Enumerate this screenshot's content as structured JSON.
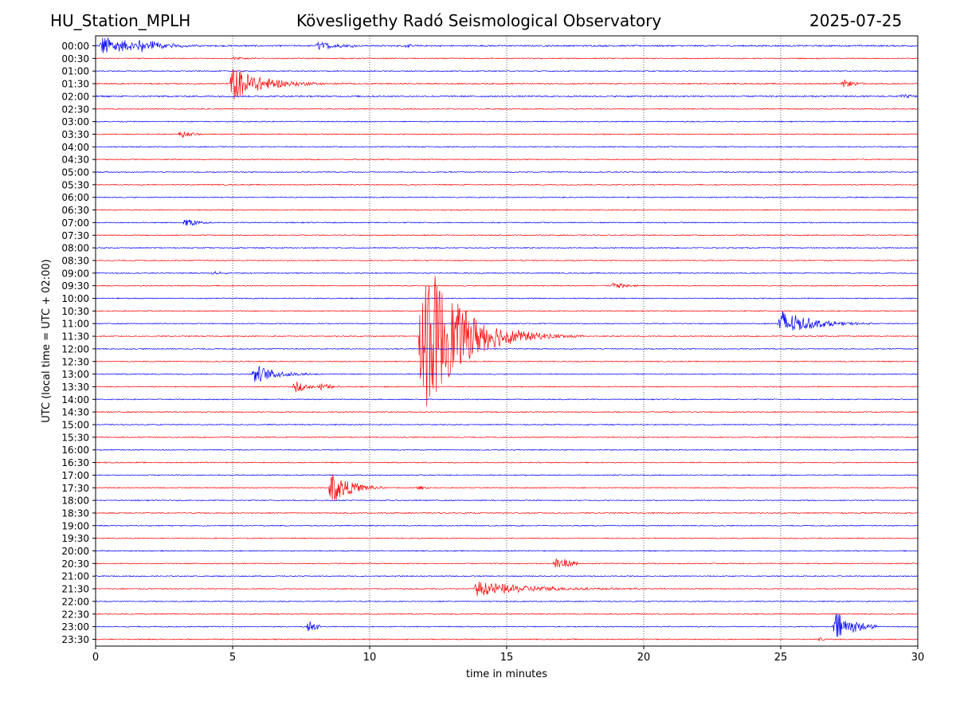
{
  "header": {
    "station": "HU_Station_MPLH",
    "title": "Kövesligethy Radó Seismological Observatory",
    "date": "2025-07-25"
  },
  "chart_data": {
    "type": "line",
    "title": "Kövesligethy Radó Seismological Observatory",
    "xlabel": "time in minutes",
    "ylabel": "UTC (local time = UTC + 02:00)",
    "xlim": [
      0,
      30
    ],
    "xticks": [
      0,
      5,
      10,
      15,
      20,
      25,
      30
    ],
    "grid": "vertical dotted at x ticks",
    "row_labels": [
      "00:00",
      "00:30",
      "01:00",
      "01:30",
      "02:00",
      "02:30",
      "03:00",
      "03:30",
      "04:00",
      "04:30",
      "05:00",
      "05:30",
      "06:00",
      "06:30",
      "07:00",
      "07:30",
      "08:00",
      "08:30",
      "09:00",
      "09:30",
      "10:00",
      "10:30",
      "11:00",
      "11:30",
      "12:00",
      "12:30",
      "13:00",
      "13:30",
      "14:00",
      "14:30",
      "15:00",
      "15:30",
      "16:00",
      "16:30",
      "17:00",
      "17:30",
      "18:00",
      "18:30",
      "19:00",
      "19:30",
      "20:00",
      "20:30",
      "21:00",
      "21:30",
      "22:00",
      "22:30",
      "23:00",
      "23:30"
    ],
    "row_colors": [
      "#0000ff",
      "#ff0000"
    ],
    "noise_level": [
      0.9,
      0.6,
      0.6,
      0.7,
      0.9,
      0.6,
      0.6,
      0.6,
      0.6,
      0.6,
      0.6,
      0.6,
      0.6,
      0.6,
      0.6,
      0.6,
      0.6,
      0.6,
      0.6,
      0.6,
      0.6,
      0.6,
      0.6,
      0.6,
      0.6,
      0.6,
      0.6,
      0.6,
      0.6,
      0.6,
      0.6,
      0.6,
      0.6,
      0.6,
      0.6,
      0.6,
      0.6,
      0.6,
      0.6,
      0.6,
      0.6,
      0.6,
      0.6,
      0.6,
      0.6,
      0.6,
      0.6,
      0.6
    ],
    "events": [
      {
        "row": 0,
        "start": 0.15,
        "amp": 14,
        "decay": 1.2,
        "dur": 3.5
      },
      {
        "row": 0,
        "start": 1.5,
        "amp": 7,
        "decay": 0.9,
        "dur": 2.5
      },
      {
        "row": 0,
        "start": 8.0,
        "amp": 6,
        "decay": 0.8,
        "dur": 1.5
      },
      {
        "row": 0,
        "start": 11.2,
        "amp": 2,
        "decay": 0.5,
        "dur": 0.8
      },
      {
        "row": 1,
        "start": 4.9,
        "amp": 2.5,
        "decay": 0.6,
        "dur": 1.0
      },
      {
        "row": 3,
        "start": 4.9,
        "amp": 24,
        "decay": 1.1,
        "dur": 5.0
      },
      {
        "row": 3,
        "start": 27.2,
        "amp": 6,
        "decay": 0.5,
        "dur": 1.3
      },
      {
        "row": 4,
        "start": 29.3,
        "amp": 3,
        "decay": 0.6,
        "dur": 0.7
      },
      {
        "row": 7,
        "start": 3.0,
        "amp": 6,
        "decay": 0.4,
        "dur": 0.9
      },
      {
        "row": 14,
        "start": 3.2,
        "amp": 9,
        "decay": 0.4,
        "dur": 1.0
      },
      {
        "row": 18,
        "start": 4.2,
        "amp": 3,
        "decay": 0.4,
        "dur": 0.7
      },
      {
        "row": 19,
        "start": 18.8,
        "amp": 6,
        "decay": 0.5,
        "dur": 1.0
      },
      {
        "row": 22,
        "start": 24.9,
        "amp": 20,
        "decay": 1.0,
        "dur": 3.5
      },
      {
        "row": 23,
        "start": 11.8,
        "amp": 120,
        "decay": 1.3,
        "dur": 6.0
      },
      {
        "row": 26,
        "start": 5.7,
        "amp": 14,
        "decay": 0.8,
        "dur": 2.5
      },
      {
        "row": 27,
        "start": 7.2,
        "amp": 10,
        "decay": 0.4,
        "dur": 0.9
      },
      {
        "row": 27,
        "start": 8.1,
        "amp": 6,
        "decay": 0.4,
        "dur": 0.8
      },
      {
        "row": 35,
        "start": 8.5,
        "amp": 24,
        "decay": 0.7,
        "dur": 2.0
      },
      {
        "row": 35,
        "start": 11.7,
        "amp": 3,
        "decay": 0.3,
        "dur": 0.5
      },
      {
        "row": 41,
        "start": 16.7,
        "amp": 11,
        "decay": 0.6,
        "dur": 0.9
      },
      {
        "row": 43,
        "start": 13.8,
        "amp": 10,
        "decay": 2.0,
        "dur": 7.0
      },
      {
        "row": 46,
        "start": 7.7,
        "amp": 12,
        "decay": 0.3,
        "dur": 0.5
      },
      {
        "row": 46,
        "start": 26.9,
        "amp": 22,
        "decay": 0.7,
        "dur": 1.6
      },
      {
        "row": 47,
        "start": 26.3,
        "amp": 3,
        "decay": 0.3,
        "dur": 0.5
      }
    ]
  }
}
